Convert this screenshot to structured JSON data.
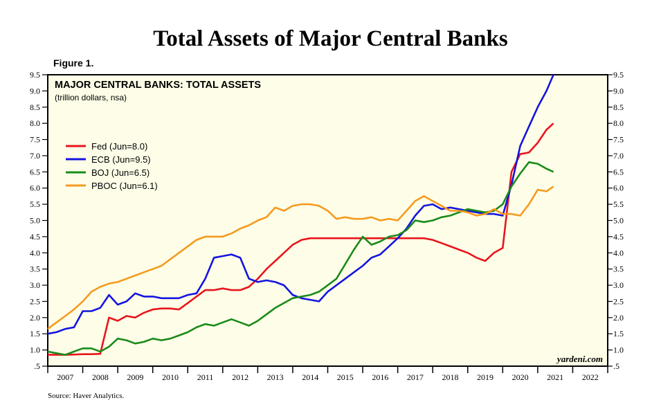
{
  "page": {
    "main_title": "Total Assets of Major Central Banks",
    "figure_label": "Figure 1.",
    "source": "Source: Haver Analytics."
  },
  "chart_data": {
    "type": "line",
    "title": "MAJOR CENTRAL BANKS: TOTAL ASSETS",
    "subtitle": "(trillion dollars, nsa)",
    "watermark": "yardeni.com",
    "xlabel": "",
    "ylabel": "",
    "xlim": [
      2007,
      2023
    ],
    "ylim": [
      0.5,
      9.5
    ],
    "y_ticks": [
      0.5,
      1.0,
      1.5,
      2.0,
      2.5,
      3.0,
      3.5,
      4.0,
      4.5,
      5.0,
      5.5,
      6.0,
      6.5,
      7.0,
      7.5,
      8.0,
      8.5,
      9.0,
      9.5
    ],
    "y_tick_labels": [
      ".5",
      "1.0",
      "1.5",
      "2.0",
      "2.5",
      "3.0",
      "3.5",
      "4.0",
      "4.5",
      "5.0",
      "5.5",
      "6.0",
      "6.5",
      "7.0",
      "7.5",
      "8.0",
      "8.5",
      "9.0",
      "9.5"
    ],
    "x_tick_labels": [
      "2007",
      "2008",
      "2009",
      "2010",
      "2011",
      "2012",
      "2013",
      "2014",
      "2015",
      "2016",
      "2017",
      "2018",
      "2019",
      "2020",
      "2021",
      "2022"
    ],
    "grid": false,
    "legend_position": "upper-left",
    "x": [
      2007.0,
      2007.25,
      2007.5,
      2007.75,
      2008.0,
      2008.25,
      2008.5,
      2008.75,
      2009.0,
      2009.25,
      2009.5,
      2009.75,
      2010.0,
      2010.25,
      2010.5,
      2010.75,
      2011.0,
      2011.25,
      2011.5,
      2011.75,
      2012.0,
      2012.25,
      2012.5,
      2012.75,
      2013.0,
      2013.25,
      2013.5,
      2013.75,
      2014.0,
      2014.25,
      2014.5,
      2014.75,
      2015.0,
      2015.25,
      2015.5,
      2015.75,
      2016.0,
      2016.25,
      2016.5,
      2016.75,
      2017.0,
      2017.25,
      2017.5,
      2017.75,
      2018.0,
      2018.25,
      2018.5,
      2018.75,
      2019.0,
      2019.25,
      2019.5,
      2019.75,
      2020.0,
      2020.25,
      2020.5,
      2020.75,
      2021.0,
      2021.25,
      2021.45
    ],
    "series": [
      {
        "name": "Fed",
        "label": "Fed (Jun=8.0)",
        "color": "#e8141c",
        "values": [
          0.85,
          0.85,
          0.85,
          0.86,
          0.87,
          0.87,
          0.88,
          2.0,
          1.9,
          2.05,
          2.0,
          2.15,
          2.25,
          2.28,
          2.28,
          2.25,
          2.45,
          2.65,
          2.85,
          2.85,
          2.9,
          2.85,
          2.85,
          2.95,
          3.2,
          3.5,
          3.75,
          4.0,
          4.25,
          4.4,
          4.45,
          4.45,
          4.45,
          4.45,
          4.45,
          4.45,
          4.45,
          4.45,
          4.45,
          4.45,
          4.45,
          4.45,
          4.45,
          4.45,
          4.4,
          4.3,
          4.2,
          4.1,
          4.0,
          3.85,
          3.75,
          4.0,
          4.15,
          6.5,
          7.05,
          7.1,
          7.4,
          7.8,
          8.0
        ]
      },
      {
        "name": "ECB",
        "label": "ECB (Jun=9.5)",
        "color": "#1414e0",
        "values": [
          1.5,
          1.55,
          1.65,
          1.7,
          2.2,
          2.2,
          2.3,
          2.7,
          2.4,
          2.5,
          2.75,
          2.65,
          2.65,
          2.6,
          2.6,
          2.6,
          2.7,
          2.75,
          3.2,
          3.85,
          3.9,
          3.95,
          3.85,
          3.2,
          3.1,
          3.15,
          3.1,
          3.0,
          2.7,
          2.6,
          2.55,
          2.5,
          2.8,
          3.0,
          3.2,
          3.4,
          3.6,
          3.85,
          3.95,
          4.2,
          4.45,
          4.75,
          5.15,
          5.45,
          5.5,
          5.35,
          5.4,
          5.35,
          5.3,
          5.25,
          5.2,
          5.2,
          5.15,
          6.1,
          7.3,
          7.9,
          8.5,
          9.0,
          9.5
        ]
      },
      {
        "name": "BOJ",
        "label": "BOJ (Jun=6.5)",
        "color": "#1a8a1a",
        "values": [
          0.95,
          0.9,
          0.85,
          0.95,
          1.05,
          1.05,
          0.95,
          1.1,
          1.35,
          1.3,
          1.2,
          1.25,
          1.35,
          1.3,
          1.35,
          1.45,
          1.55,
          1.7,
          1.8,
          1.75,
          1.85,
          1.95,
          1.85,
          1.75,
          1.9,
          2.1,
          2.3,
          2.45,
          2.6,
          2.65,
          2.7,
          2.8,
          3.0,
          3.2,
          3.65,
          4.1,
          4.5,
          4.25,
          4.35,
          4.5,
          4.55,
          4.7,
          5.0,
          4.95,
          5.0,
          5.1,
          5.15,
          5.25,
          5.35,
          5.3,
          5.25,
          5.3,
          5.5,
          6.05,
          6.45,
          6.8,
          6.75,
          6.6,
          6.5
        ]
      },
      {
        "name": "PBOC",
        "label": "PBOC (Jun=6.1)",
        "color": "#f59a1e",
        "values": [
          1.65,
          1.85,
          2.05,
          2.25,
          2.5,
          2.8,
          2.95,
          3.05,
          3.1,
          3.2,
          3.3,
          3.4,
          3.5,
          3.6,
          3.8,
          4.0,
          4.2,
          4.4,
          4.5,
          4.5,
          4.5,
          4.6,
          4.75,
          4.85,
          5.0,
          5.1,
          5.4,
          5.3,
          5.45,
          5.5,
          5.5,
          5.45,
          5.3,
          5.05,
          5.1,
          5.05,
          5.05,
          5.1,
          5.0,
          5.05,
          5.0,
          5.3,
          5.6,
          5.75,
          5.6,
          5.45,
          5.3,
          5.3,
          5.25,
          5.15,
          5.2,
          5.35,
          5.2,
          5.2,
          5.15,
          5.5,
          5.95,
          5.9,
          6.05
        ]
      }
    ]
  }
}
